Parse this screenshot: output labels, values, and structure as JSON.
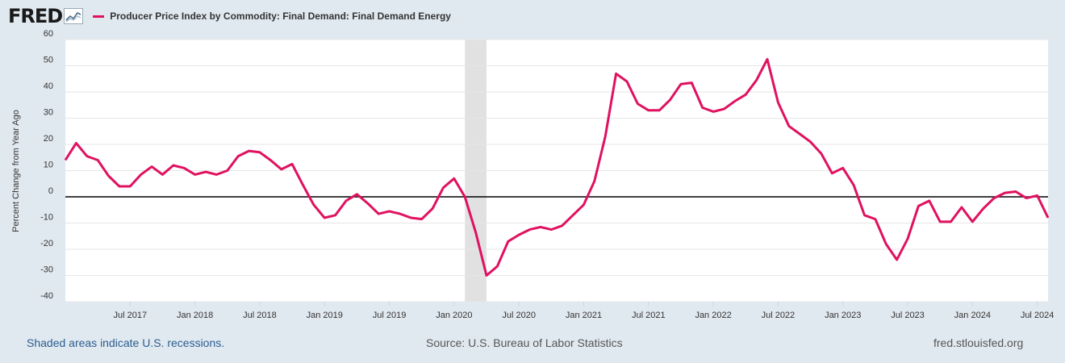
{
  "brand": {
    "logo_text": "FRED"
  },
  "legend": {
    "label": "Producer Price Index by Commodity: Final Demand: Final Demand Energy",
    "color": "#e0115f"
  },
  "footer": {
    "recession_note": "Shaded areas indicate U.S. recessions.",
    "source": "Source: U.S. Bureau of Labor Statistics",
    "site": "fred.stlouisfed.org"
  },
  "chart_data": {
    "type": "line",
    "title": "Producer Price Index by Commodity: Final Demand: Final Demand Energy",
    "ylabel": "Percent Change from Year Ago",
    "xlabel": "",
    "ylim": [
      -40,
      60
    ],
    "yticks": [
      60,
      50,
      40,
      30,
      20,
      10,
      0,
      -10,
      -20,
      -30,
      -40
    ],
    "xlim": [
      2017.0,
      2024.5833
    ],
    "xticks": [
      {
        "label": "Jul 2017",
        "x": 2017.5
      },
      {
        "label": "Jan 2018",
        "x": 2018.0
      },
      {
        "label": "Jul 2018",
        "x": 2018.5
      },
      {
        "label": "Jan 2019",
        "x": 2019.0
      },
      {
        "label": "Jul 2019",
        "x": 2019.5
      },
      {
        "label": "Jan 2020",
        "x": 2020.0
      },
      {
        "label": "Jul 2020",
        "x": 2020.5
      },
      {
        "label": "Jan 2021",
        "x": 2021.0
      },
      {
        "label": "Jul 2021",
        "x": 2021.5
      },
      {
        "label": "Jan 2022",
        "x": 2022.0
      },
      {
        "label": "Jul 2022",
        "x": 2022.5
      },
      {
        "label": "Jan 2023",
        "x": 2023.0
      },
      {
        "label": "Jul 2023",
        "x": 2023.5
      },
      {
        "label": "Jan 2024",
        "x": 2024.0
      },
      {
        "label": "Jul 2024",
        "x": 2024.5
      }
    ],
    "recessions": [
      {
        "start": 2020.0833,
        "end": 2020.25
      }
    ],
    "zero_line": 0,
    "series": [
      {
        "name": "Final Demand Energy",
        "color": "#e0115f",
        "start": 2017.0,
        "step_months": 1,
        "values": [
          14,
          20.5,
          15.5,
          14,
          8,
          4,
          4,
          8.5,
          11.5,
          8.5,
          12,
          11,
          8.5,
          9.5,
          8.5,
          10,
          15.5,
          17.5,
          17,
          14,
          10.5,
          12.5,
          4.5,
          -3,
          -8,
          -7,
          -1.5,
          1,
          -2.5,
          -6.5,
          -5.5,
          -6.5,
          -8,
          -8.5,
          -4.5,
          3.5,
          7,
          0,
          -13.5,
          -30,
          -26.5,
          -17,
          -14.5,
          -12.5,
          -11.5,
          -12.5,
          -11,
          -7,
          -3,
          6,
          23,
          47,
          44,
          35.5,
          33,
          33,
          37,
          43,
          43.5,
          34,
          32.5,
          33.5,
          36.5,
          39,
          44.5,
          52.5,
          36,
          27,
          24,
          21,
          16.5,
          9,
          11,
          4.5,
          -7,
          -8.5,
          -18,
          -24,
          -16,
          -3.5,
          -1.5,
          -9.5,
          -9.5,
          -4,
          -9.5,
          -4.5,
          -0.5,
          1.5,
          2,
          -0.5,
          0.5,
          -8
        ]
      }
    ]
  }
}
